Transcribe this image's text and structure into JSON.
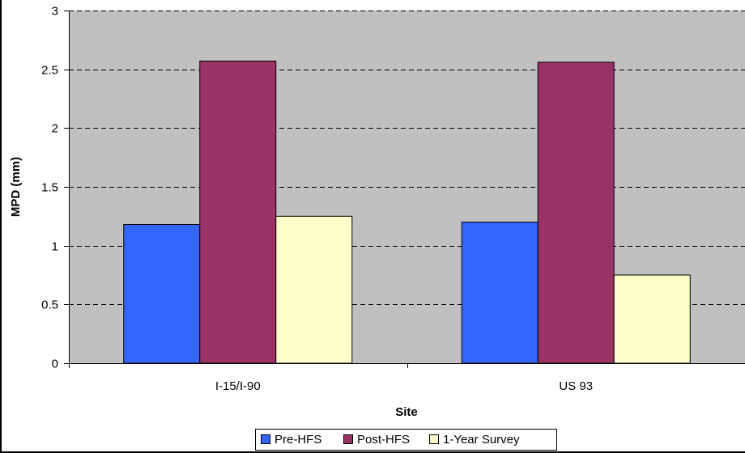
{
  "chart_data": {
    "type": "bar",
    "title": "",
    "xlabel": "Site",
    "ylabel": "MPD (mm)",
    "categories": [
      "I-15/I-90",
      "US 93"
    ],
    "series": [
      {
        "name": "Pre-HFS",
        "values": [
          1.18,
          1.2
        ],
        "color": "#3366FF"
      },
      {
        "name": "Post-HFS",
        "values": [
          2.57,
          2.56
        ],
        "color": "#993366"
      },
      {
        "name": "1-Year Survey",
        "values": [
          1.25,
          0.75
        ],
        "color": "#FFFFCC"
      }
    ],
    "ylim": [
      0,
      3
    ],
    "yticks": [
      "0",
      "0.5",
      "1",
      "1.5",
      "2",
      "2.5",
      "3"
    ],
    "grid": true,
    "plot_background": "#C0C0C0",
    "legend_position": "bottom"
  }
}
